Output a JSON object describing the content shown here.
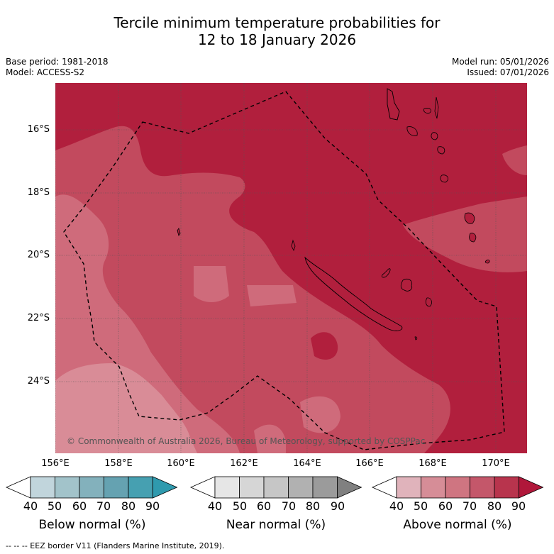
{
  "title": {
    "line1": "Tercile minimum temperature probabilities for",
    "line2": "12 to 18 January 2026"
  },
  "meta": {
    "base_period": "Base period: 1981-2018",
    "model": "Model: ACCESS-S2",
    "model_run": "Model run: 05/01/2026",
    "issued": "Issued: 07/01/2026"
  },
  "map": {
    "lat_labels": [
      "16°S",
      "18°S",
      "20°S",
      "22°S",
      "24°S"
    ],
    "lon_labels": [
      "156°E",
      "158°E",
      "160°E",
      "162°E",
      "164°E",
      "166°E",
      "168°E",
      "170°E"
    ],
    "copyright": "© Commonwealth of Australia 2026, Bureau of Meteorology, supported by COSPPac",
    "colors": {
      "above_70": "#c24a5e",
      "above_80": "#b11f3d",
      "above_60": "#cf6b7b",
      "above_50": "#d98c97",
      "land": "#b11f3d",
      "border": "#000000"
    }
  },
  "colorbars": {
    "below": {
      "label": "Below normal (%)",
      "ticks": [
        "40",
        "50",
        "60",
        "70",
        "80",
        "90"
      ],
      "colors": [
        "#ffffff",
        "#c1d5dc",
        "#a2c3ca",
        "#83b1bc",
        "#65a2b1",
        "#46a0b1",
        "#2f9aae"
      ]
    },
    "near": {
      "label": "Near normal (%)",
      "ticks": [
        "40",
        "50",
        "60",
        "70",
        "80",
        "90"
      ],
      "colors": [
        "#ffffff",
        "#e6e6e6",
        "#d6d6d6",
        "#c6c6c6",
        "#b1b1b1",
        "#9b9b9b",
        "#808080"
      ]
    },
    "above": {
      "label": "Above normal (%)",
      "ticks": [
        "40",
        "50",
        "60",
        "70",
        "80",
        "90"
      ],
      "colors": [
        "#ffffff",
        "#e0b3bb",
        "#d68d97",
        "#cf7581",
        "#c4576a",
        "#b8344d",
        "#b0173a"
      ]
    }
  },
  "footer": "--  --  -- EEZ border V11 (Flanders Marine Institute, 2019)."
}
